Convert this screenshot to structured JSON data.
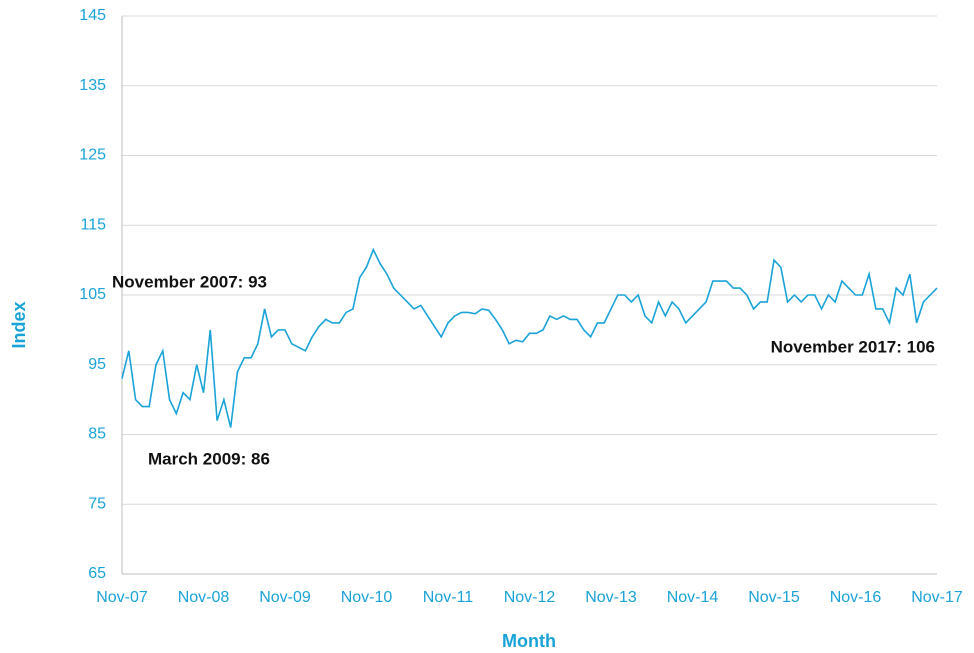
{
  "chart_data": {
    "type": "line",
    "xlabel": "Month",
    "ylabel": "Index",
    "categories": [
      "Nov-07",
      null,
      null,
      null,
      null,
      null,
      null,
      null,
      null,
      null,
      null,
      null,
      "Nov-08",
      null,
      null,
      null,
      null,
      null,
      null,
      null,
      null,
      null,
      null,
      null,
      "Nov-09",
      null,
      null,
      null,
      null,
      null,
      null,
      null,
      null,
      null,
      null,
      null,
      "Nov-10",
      null,
      null,
      null,
      null,
      null,
      null,
      null,
      null,
      null,
      null,
      null,
      "Nov-11",
      null,
      null,
      null,
      null,
      null,
      null,
      null,
      null,
      null,
      null,
      null,
      "Nov-12",
      null,
      null,
      null,
      null,
      null,
      null,
      null,
      null,
      null,
      null,
      null,
      "Nov-13",
      null,
      null,
      null,
      null,
      null,
      null,
      null,
      null,
      null,
      null,
      null,
      "Nov-14",
      null,
      null,
      null,
      null,
      null,
      null,
      null,
      null,
      null,
      null,
      null,
      "Nov-15",
      null,
      null,
      null,
      null,
      null,
      null,
      null,
      null,
      null,
      null,
      null,
      "Nov-16",
      null,
      null,
      null,
      null,
      null,
      null,
      null,
      null,
      null,
      null,
      null,
      "Nov-17"
    ],
    "values": [
      93,
      97,
      90,
      89,
      89,
      95,
      97,
      90,
      88,
      91,
      90,
      95,
      91,
      100,
      87,
      90,
      86,
      94,
      96,
      96,
      98,
      103,
      99,
      100,
      100,
      98,
      97.5,
      97,
      99,
      100.5,
      101.5,
      101,
      101,
      102.5,
      103,
      107.5,
      109,
      111.5,
      109.5,
      108,
      106,
      105,
      104,
      103,
      103.5,
      102,
      100.5,
      99,
      101,
      102,
      102.5,
      102.5,
      102.3,
      103,
      102.8,
      101.5,
      100,
      98,
      98.5,
      98.3,
      99.5,
      99.5,
      100,
      102,
      101.5,
      102,
      101.5,
      101.5,
      100,
      99,
      101,
      101,
      103,
      105,
      105,
      104,
      105,
      102,
      101,
      104,
      102,
      104,
      103,
      101,
      102,
      103,
      104,
      107,
      107,
      107,
      106,
      106,
      105,
      103,
      104,
      104,
      110,
      109,
      104,
      105,
      104,
      105,
      105,
      103,
      105,
      104,
      107,
      106,
      105,
      105,
      108,
      103,
      103,
      101,
      106,
      105,
      108,
      101,
      104,
      105,
      106
    ],
    "color": "#1aa3d8",
    "ylim": [
      65,
      145
    ],
    "yticks": [
      65,
      75,
      85,
      95,
      105,
      115,
      125,
      135,
      145
    ],
    "grid": true,
    "annotations": [
      "November 2007: 93",
      "March 2009: 86",
      "November 2017: 106"
    ]
  }
}
